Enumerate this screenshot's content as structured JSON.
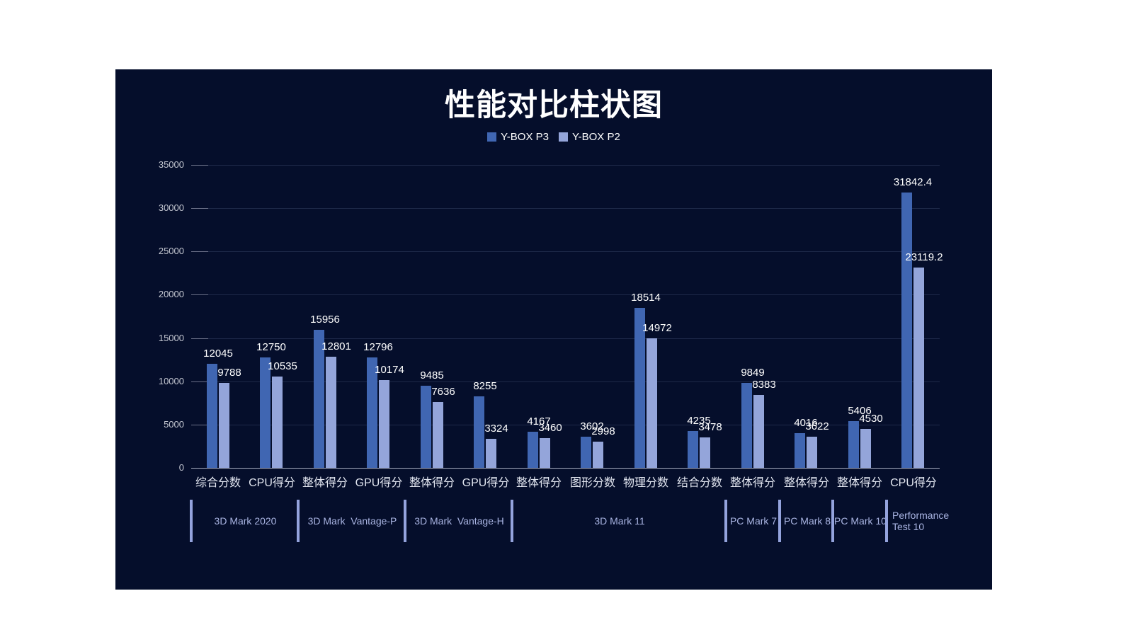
{
  "title": "性能对比柱状图",
  "colors": {
    "background": "#ffffff",
    "panel": "#050e2b",
    "series_p3": "#4066b2",
    "series_p2": "#94a5da",
    "grid": "#1e2949",
    "axis": "#a9aec0",
    "tick": "#6a7088",
    "y_label": "#c4c7d1",
    "x_label": "#e2e6f0",
    "group_label": "#a9b4e2",
    "divider": "#94a3dd",
    "value_label": "#ffffff",
    "title_color": "#ffffff"
  },
  "chart_data": {
    "type": "bar",
    "title": "性能对比柱状图",
    "legend_position": "top",
    "grid": true,
    "categories": [
      "综合分数",
      "CPU得分",
      "整体得分",
      "GPU得分",
      "整体得分",
      "GPU得分",
      "整体得分",
      "图形分数",
      "物理分数",
      "结合分数",
      "整体得分",
      "整体得分",
      "整体得分",
      "CPU得分"
    ],
    "series": [
      {
        "name": "Y-BOX P3",
        "color": "#4066b2",
        "values": [
          12045,
          12750,
          15956,
          12796,
          9485,
          8255,
          4167,
          3602,
          18514,
          4235,
          9849,
          4016,
          5406,
          31842.4
        ]
      },
      {
        "name": "Y-BOX P2",
        "color": "#94a5da",
        "values": [
          9788,
          10535,
          12801,
          10174,
          7636,
          3324,
          3460,
          2998,
          14972,
          3478,
          8383,
          3622,
          4530,
          23119.2
        ]
      }
    ],
    "groups": [
      {
        "label": "3D Mark 2020",
        "span": 2,
        "align": "center"
      },
      {
        "label": "3D Mark  Vantage-P",
        "span": 2,
        "align": "center"
      },
      {
        "label": "3D Mark  Vantage-H",
        "span": 2,
        "align": "center"
      },
      {
        "label": "3D Mark 11",
        "span": 4,
        "align": "center"
      },
      {
        "label": "PC Mark 7",
        "span": 1,
        "align": "center"
      },
      {
        "label": "PC Mark 8",
        "span": 1,
        "align": "center"
      },
      {
        "label": "PC Mark 10",
        "span": 1,
        "align": "center"
      },
      {
        "label": "Performance Test 10",
        "span": 1,
        "align": "left"
      }
    ],
    "y_axis": {
      "min": 0,
      "max": 35000,
      "step": 5000,
      "ticks": [
        "0",
        "5000",
        "10000",
        "15000",
        "20000",
        "25000",
        "30000",
        "35000"
      ]
    },
    "xlabel": "",
    "ylabel": ""
  }
}
